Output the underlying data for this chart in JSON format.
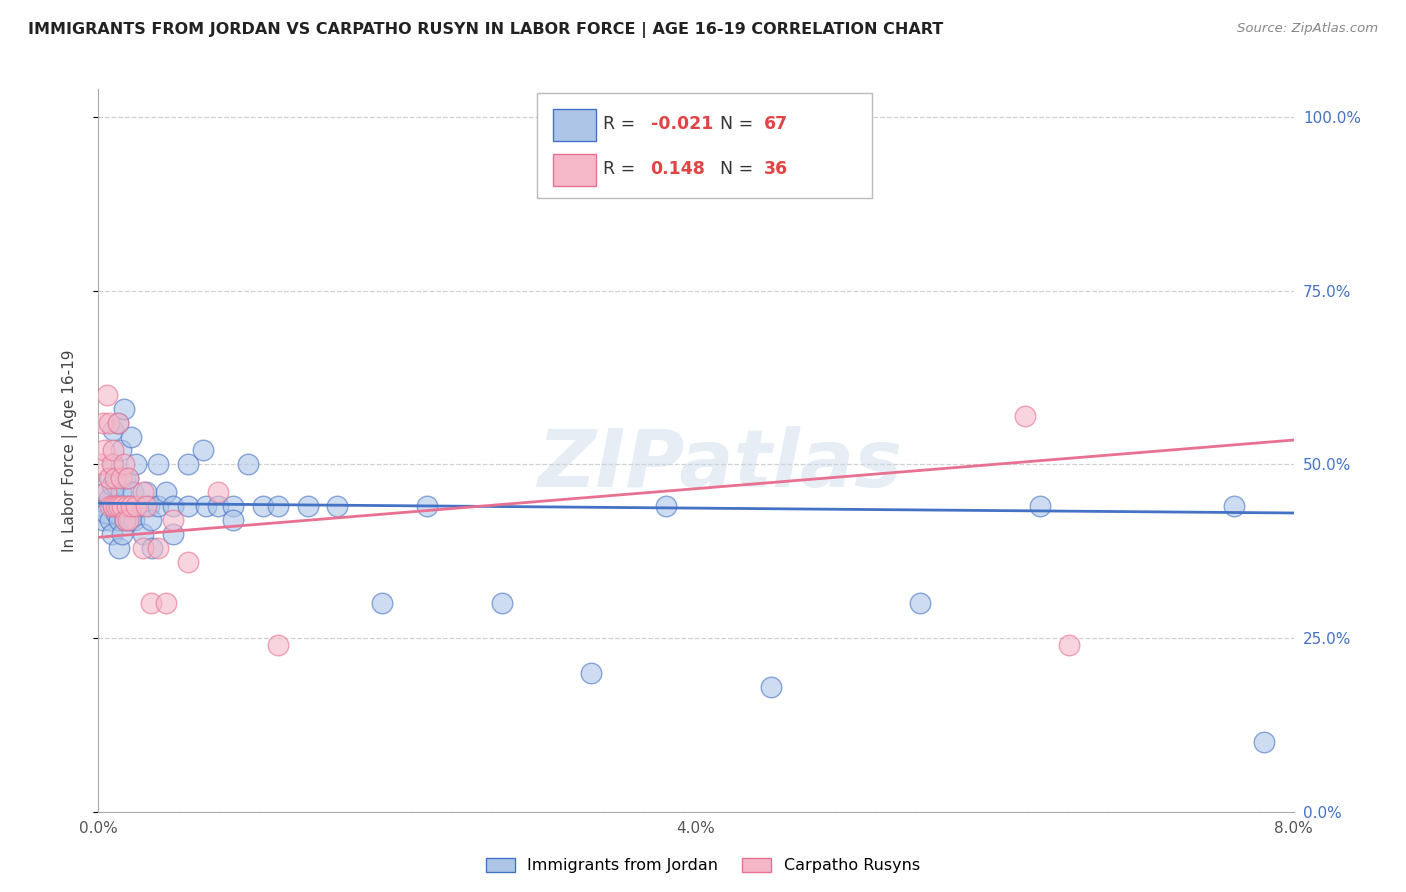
{
  "title": "IMMIGRANTS FROM JORDAN VS CARPATHO RUSYN IN LABOR FORCE | AGE 16-19 CORRELATION CHART",
  "source": "Source: ZipAtlas.com",
  "ylabel": "In Labor Force | Age 16-19",
  "xlim": [
    0.0,
    0.08
  ],
  "ylim": [
    0.0,
    1.04
  ],
  "xticks": [
    0.0,
    0.02,
    0.04,
    0.06,
    0.08
  ],
  "xticklabels": [
    "0.0%",
    "",
    "4.0%",
    "",
    "8.0%"
  ],
  "yticks": [
    0.0,
    0.25,
    0.5,
    0.75,
    1.0
  ],
  "yticklabels_right": [
    "0.0%",
    "25.0%",
    "50.0%",
    "75.0%",
    "100.0%"
  ],
  "background_color": "#ffffff",
  "grid_color": "#d0d0d0",
  "jordan_color": "#adc6e8",
  "carpatho_color": "#f4b8c8",
  "jordan_line_color": "#4472c4",
  "carpatho_line_color": "#e87090",
  "jordan_R": "-0.021",
  "jordan_N": "67",
  "carpatho_R": "0.148",
  "carpatho_N": "36",
  "watermark": "ZIPatlas",
  "jordan_scatter_x": [
    0.0003,
    0.0003,
    0.0005,
    0.0005,
    0.0007,
    0.0008,
    0.0008,
    0.0009,
    0.0009,
    0.001,
    0.001,
    0.001,
    0.0012,
    0.0012,
    0.0013,
    0.0013,
    0.0014,
    0.0014,
    0.0015,
    0.0015,
    0.0016,
    0.0016,
    0.0017,
    0.0017,
    0.0018,
    0.0018,
    0.002,
    0.002,
    0.0021,
    0.0022,
    0.0022,
    0.0023,
    0.0024,
    0.0025,
    0.003,
    0.003,
    0.0032,
    0.0034,
    0.0035,
    0.0036,
    0.004,
    0.004,
    0.0045,
    0.005,
    0.005,
    0.006,
    0.006,
    0.007,
    0.0072,
    0.008,
    0.009,
    0.009,
    0.01,
    0.011,
    0.012,
    0.014,
    0.016,
    0.019,
    0.022,
    0.027,
    0.033,
    0.038,
    0.045,
    0.055,
    0.063,
    0.076,
    0.078
  ],
  "jordan_scatter_y": [
    0.44,
    0.42,
    0.46,
    0.43,
    0.45,
    0.42,
    0.48,
    0.4,
    0.47,
    0.5,
    0.44,
    0.55,
    0.43,
    0.47,
    0.56,
    0.44,
    0.42,
    0.38,
    0.46,
    0.52,
    0.44,
    0.4,
    0.58,
    0.44,
    0.48,
    0.42,
    0.44,
    0.48,
    0.42,
    0.54,
    0.44,
    0.46,
    0.42,
    0.5,
    0.44,
    0.4,
    0.46,
    0.44,
    0.42,
    0.38,
    0.5,
    0.44,
    0.46,
    0.44,
    0.4,
    0.5,
    0.44,
    0.52,
    0.44,
    0.44,
    0.44,
    0.42,
    0.5,
    0.44,
    0.44,
    0.44,
    0.44,
    0.3,
    0.44,
    0.3,
    0.2,
    0.44,
    0.18,
    0.3,
    0.44,
    0.44,
    0.1
  ],
  "carpatho_scatter_x": [
    0.0002,
    0.0003,
    0.0004,
    0.0005,
    0.0006,
    0.0007,
    0.0007,
    0.0008,
    0.0009,
    0.001,
    0.001,
    0.0011,
    0.0012,
    0.0013,
    0.0014,
    0.0015,
    0.0016,
    0.0017,
    0.0018,
    0.0019,
    0.002,
    0.002,
    0.0022,
    0.0025,
    0.003,
    0.003,
    0.0032,
    0.0035,
    0.004,
    0.0045,
    0.005,
    0.006,
    0.008,
    0.012,
    0.062,
    0.065
  ],
  "carpatho_scatter_y": [
    0.5,
    0.56,
    0.52,
    0.46,
    0.6,
    0.56,
    0.48,
    0.44,
    0.5,
    0.44,
    0.52,
    0.48,
    0.44,
    0.56,
    0.44,
    0.48,
    0.44,
    0.5,
    0.42,
    0.44,
    0.42,
    0.48,
    0.44,
    0.44,
    0.46,
    0.38,
    0.44,
    0.3,
    0.38,
    0.3,
    0.42,
    0.36,
    0.46,
    0.24,
    0.57,
    0.24
  ]
}
